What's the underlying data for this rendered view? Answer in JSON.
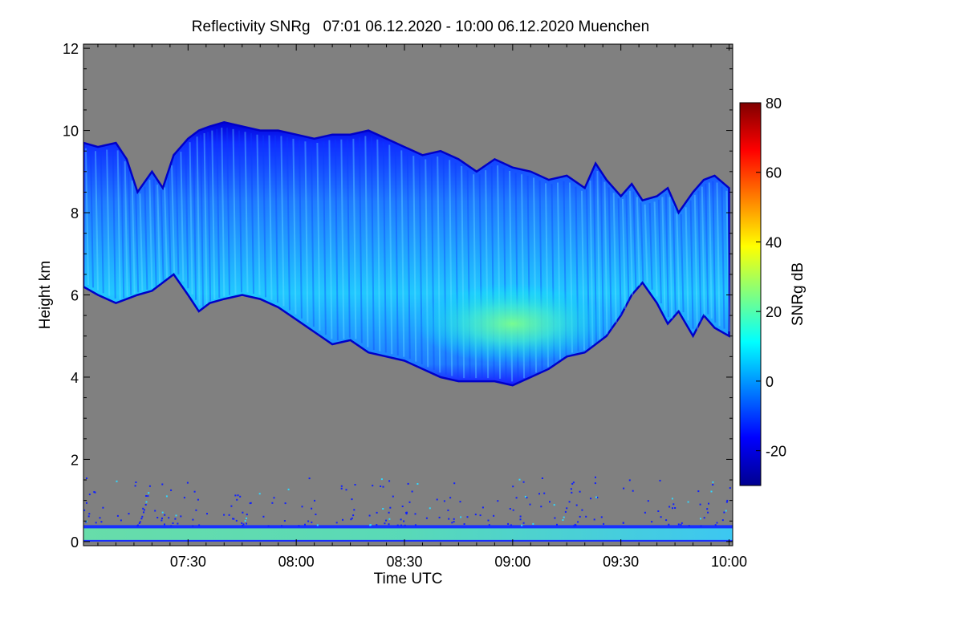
{
  "chart_data": {
    "type": "heatmap",
    "title": "Reflectivity SNRg   07:01 06.12.2020 - 10:00 06.12.2020 Muenchen",
    "xlabel": "Time UTC",
    "ylabel": "Height km",
    "colorbar_label": "SNRg dB",
    "x_ticks": [
      {
        "label": "07:30",
        "minutes": 450
      },
      {
        "label": "08:00",
        "minutes": 480
      },
      {
        "label": "08:30",
        "minutes": 510
      },
      {
        "label": "09:00",
        "minutes": 540
      },
      {
        "label": "09:30",
        "minutes": 570
      },
      {
        "label": "10:00",
        "minutes": 600
      }
    ],
    "xlim_minutes": [
      421,
      601
    ],
    "y_ticks": [
      0,
      2,
      4,
      6,
      8,
      10,
      12
    ],
    "ylim": [
      -0.1,
      12.1
    ],
    "colorbar_ticks": [
      -20,
      0,
      20,
      40,
      60,
      80
    ],
    "colorbar_range": [
      -30,
      80
    ],
    "colormap": [
      "#00008f",
      "#0000ff",
      "#0080ff",
      "#00ffff",
      "#80ff80",
      "#ffff00",
      "#ff8000",
      "#ff0000",
      "#800000"
    ],
    "background_color": "#808080",
    "cloud_layer": {
      "time_minutes": [
        421,
        425,
        430,
        433,
        436,
        440,
        443,
        446,
        450,
        453,
        456,
        460,
        465,
        470,
        475,
        480,
        485,
        490,
        495,
        500,
        505,
        510,
        515,
        520,
        525,
        530,
        535,
        540,
        545,
        550,
        555,
        560,
        563,
        566,
        570,
        573,
        576,
        580,
        583,
        586,
        590,
        593,
        596,
        600
      ],
      "top_km": [
        9.7,
        9.6,
        9.7,
        9.3,
        8.5,
        9.0,
        8.6,
        9.4,
        9.8,
        10.0,
        10.1,
        10.2,
        10.1,
        10.0,
        10.0,
        9.9,
        9.8,
        9.9,
        9.9,
        10.0,
        9.8,
        9.6,
        9.4,
        9.5,
        9.3,
        9.0,
        9.3,
        9.1,
        9.0,
        8.8,
        8.9,
        8.6,
        9.2,
        8.8,
        8.4,
        8.7,
        8.3,
        8.4,
        8.6,
        8.0,
        8.5,
        8.8,
        8.9,
        8.6
      ],
      "base_km": [
        6.2,
        6.0,
        5.8,
        5.9,
        6.0,
        6.1,
        6.3,
        6.5,
        6.0,
        5.6,
        5.8,
        5.9,
        6.0,
        5.9,
        5.7,
        5.4,
        5.1,
        4.8,
        4.9,
        4.6,
        4.5,
        4.4,
        4.2,
        4.0,
        3.9,
        3.9,
        3.9,
        3.8,
        4.0,
        4.2,
        4.5,
        4.6,
        4.8,
        5.0,
        5.5,
        6.0,
        6.3,
        5.8,
        5.3,
        5.6,
        5.0,
        5.5,
        5.2,
        5.0
      ]
    },
    "peak": {
      "time_minutes": 540,
      "height_km": 5.3,
      "snr_db": 22
    },
    "ground_layer": {
      "height_km": [
        0.0,
        0.4
      ],
      "snr_db": 18
    }
  }
}
